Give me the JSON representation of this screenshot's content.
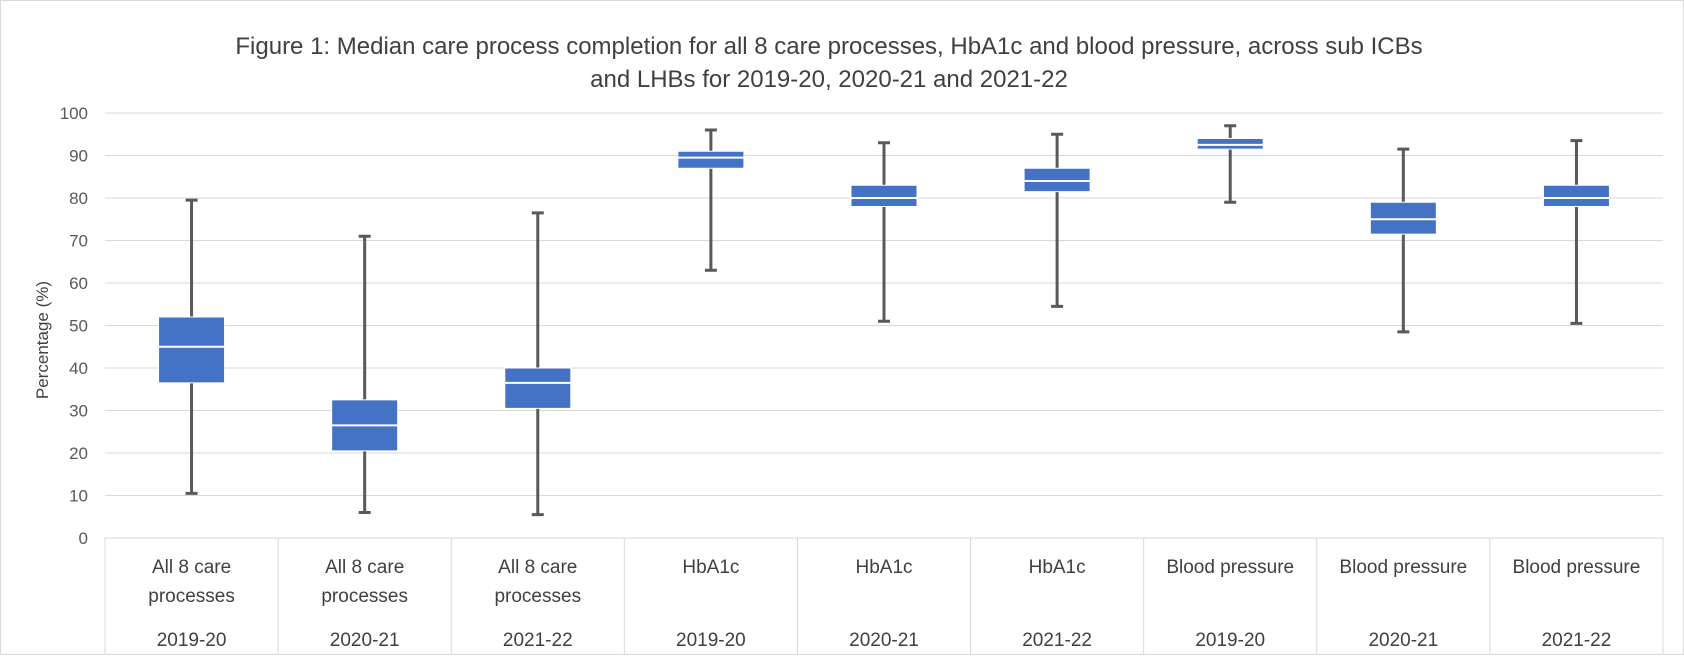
{
  "chart_data": {
    "type": "boxplot",
    "title_line1": "Figure 1: Median care process completion for all 8 care processes,  HbA1c and blood pressure, across sub ICBs",
    "title_line2": "and LHBs for 2019-20, 2020-21 and 2021-22",
    "ylabel": "Percentage (%)",
    "ylim": [
      0,
      100
    ],
    "yticks": [
      "0",
      "10",
      "20",
      "30",
      "40",
      "50",
      "60",
      "70",
      "80",
      "90",
      "100"
    ],
    "grid": true,
    "box_color": "#4472C4",
    "whisker_color": "#595959",
    "categories": [
      {
        "group_line1": "All 8 care",
        "group_line2": "processes",
        "year": "2019-20",
        "min": 10.5,
        "q1": 36.5,
        "median": 45,
        "q3": 52,
        "max": 79.5
      },
      {
        "group_line1": "All 8 care",
        "group_line2": "processes",
        "year": "2020-21",
        "min": 6,
        "q1": 20.5,
        "median": 26.5,
        "q3": 32.5,
        "max": 71
      },
      {
        "group_line1": "All 8 care",
        "group_line2": "processes",
        "year": "2021-22",
        "min": 5.5,
        "q1": 30.5,
        "median": 36.5,
        "q3": 40,
        "max": 76.5
      },
      {
        "group_line1": "HbA1c",
        "group_line2": "",
        "year": "2019-20",
        "min": 63,
        "q1": 87,
        "median": 89.5,
        "q3": 91,
        "max": 96
      },
      {
        "group_line1": "HbA1c",
        "group_line2": "",
        "year": "2020-21",
        "min": 51,
        "q1": 78,
        "median": 80,
        "q3": 83,
        "max": 93
      },
      {
        "group_line1": "HbA1c",
        "group_line2": "",
        "year": "2021-22",
        "min": 54.5,
        "q1": 81.5,
        "median": 84,
        "q3": 87,
        "max": 95
      },
      {
        "group_line1": "Blood pressure",
        "group_line2": "",
        "year": "2019-20",
        "min": 79,
        "q1": 91.5,
        "median": 92.5,
        "q3": 94,
        "max": 97
      },
      {
        "group_line1": "Blood pressure",
        "group_line2": "",
        "year": "2020-21",
        "min": 48.5,
        "q1": 71.5,
        "median": 75,
        "q3": 79,
        "max": 91.5
      },
      {
        "group_line1": "Blood pressure",
        "group_line2": "",
        "year": "2021-22",
        "min": 50.5,
        "q1": 78,
        "median": 80,
        "q3": 83,
        "max": 93.5
      }
    ]
  }
}
